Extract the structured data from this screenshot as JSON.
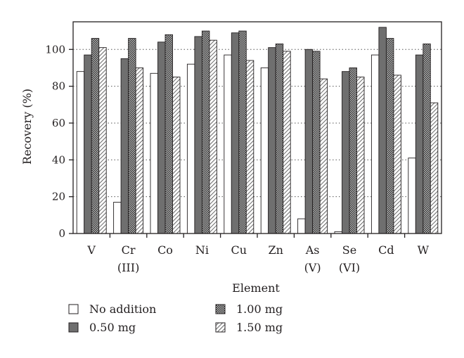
{
  "chart_data": {
    "type": "bar",
    "xlabel": "Element",
    "ylabel": "Recovery (%)",
    "ylim": [
      0,
      115
    ],
    "yticks": [
      0,
      20,
      40,
      60,
      80,
      100
    ],
    "grid": "horizontal dotted",
    "legend_position": "bottom",
    "categories": [
      [
        "V"
      ],
      [
        "Cr",
        "(III)"
      ],
      [
        "Co"
      ],
      [
        "Ni"
      ],
      [
        "Cu"
      ],
      [
        "Zn"
      ],
      [
        "As",
        "(V)"
      ],
      [
        "Se",
        "(VI)"
      ],
      [
        "Cd"
      ],
      [
        "W"
      ]
    ],
    "series": [
      {
        "name": "No addition",
        "pattern": "white",
        "values": [
          88,
          17,
          87,
          92,
          97,
          90,
          8,
          1,
          97,
          41
        ]
      },
      {
        "name": "0.50 mg",
        "pattern": "gray",
        "values": [
          97,
          95,
          104,
          107,
          109,
          101,
          100,
          88,
          112,
          97
        ]
      },
      {
        "name": "1.00 mg",
        "pattern": "crosshatch",
        "values": [
          106,
          106,
          108,
          110,
          110,
          103,
          99,
          90,
          106,
          103
        ]
      },
      {
        "name": "1.50 mg",
        "pattern": "diagonal",
        "values": [
          101,
          90,
          85,
          105,
          94,
          99,
          84,
          85,
          86,
          71
        ]
      }
    ]
  }
}
